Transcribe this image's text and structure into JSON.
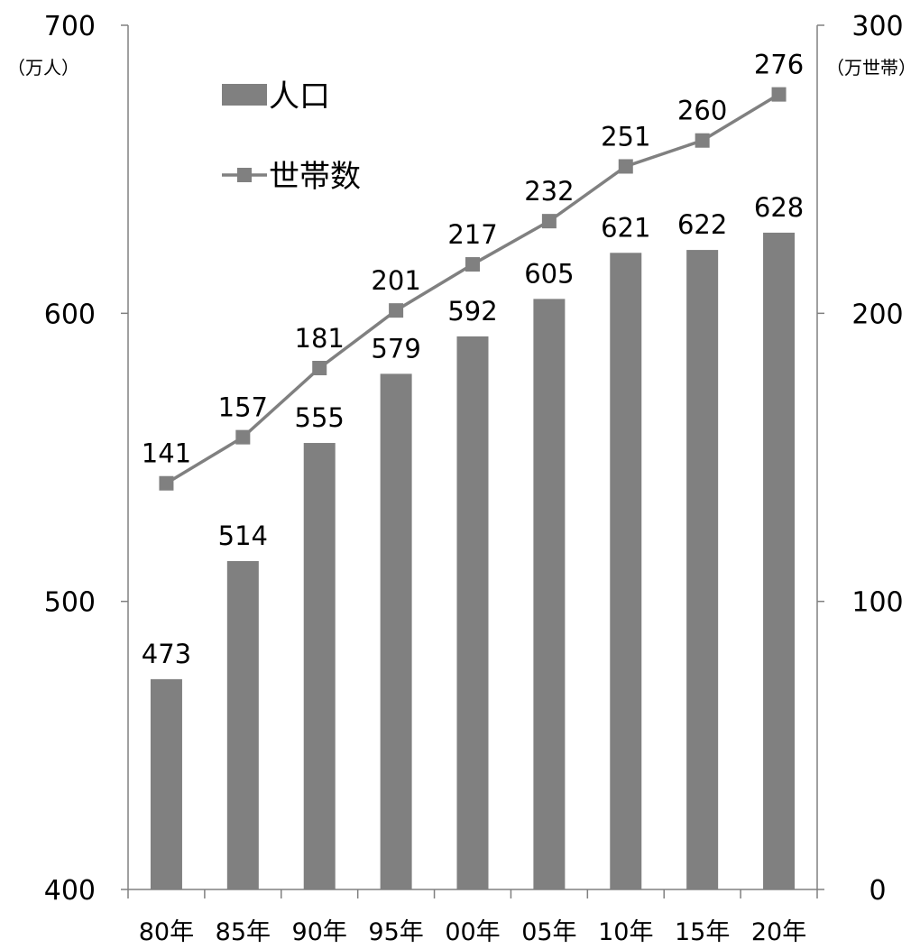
{
  "chart_data": {
    "type": "bar",
    "categories": [
      "80年",
      "85年",
      "90年",
      "95年",
      "00年",
      "05年",
      "10年",
      "15年",
      "20年"
    ],
    "series": [
      {
        "name": "人口",
        "type": "bar",
        "axis": "left",
        "values": [
          473,
          514,
          555,
          579,
          592,
          605,
          621,
          622,
          628
        ]
      },
      {
        "name": "世帯数",
        "type": "line",
        "axis": "right",
        "values": [
          141,
          157,
          181,
          201,
          217,
          232,
          251,
          260,
          276
        ]
      }
    ],
    "y_left": {
      "unit": "（万人）",
      "ylim": [
        400,
        700
      ],
      "ticks": [
        400,
        500,
        600,
        700
      ]
    },
    "y_right": {
      "unit": "（万世帯）",
      "ylim": [
        0,
        300
      ],
      "ticks": [
        0,
        100,
        200,
        300
      ]
    },
    "title": "",
    "xlabel": "",
    "legend": {
      "placement": "top-left",
      "entries": [
        "人口",
        "世帯数"
      ]
    },
    "grid": false,
    "colors": {
      "bar": "#808080",
      "line": "#808080",
      "axis": "#808080"
    }
  }
}
